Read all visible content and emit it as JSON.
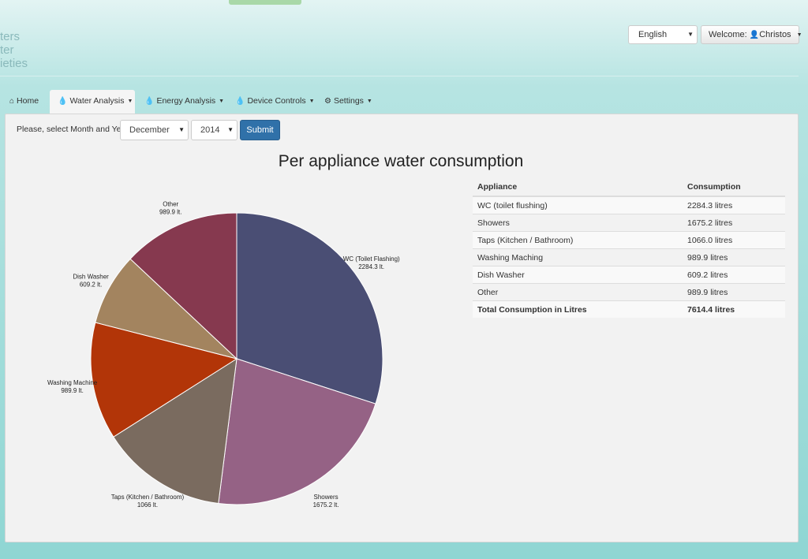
{
  "brand": {
    "lines": [
      "ters",
      "ter",
      "ieties"
    ]
  },
  "header": {
    "language": "English",
    "welcome_prefix": "Welcome:",
    "user_name": "Christos"
  },
  "nav": [
    {
      "label": "Home",
      "icon": "home-icon"
    },
    {
      "label": "Water Analysis",
      "icon": "water-drop-icon",
      "active": true
    },
    {
      "label": "Energy Analysis",
      "icon": "water-drop-icon"
    },
    {
      "label": "Device Controls",
      "icon": "water-drop-icon"
    },
    {
      "label": "Settings",
      "icon": "gear-icon"
    }
  ],
  "filter": {
    "label": "Please, select Month and Year",
    "month": "December",
    "year": "2014",
    "submit_label": "Submit"
  },
  "chart_data": {
    "type": "pie",
    "title": "Per appliance water consumption",
    "slices": [
      {
        "label": "WC (Toilet Flashing)",
        "value_label": "2284.3 lt.",
        "value": 2284.3,
        "color": "#4a4e74"
      },
      {
        "label": "Showers",
        "value_label": "1675.2 lt.",
        "value": 1675.2,
        "color": "#956285"
      },
      {
        "label": "Taps (Kitchen / Bathroom)",
        "value_label": "1066 lt.",
        "value": 1066.0,
        "color": "#7a6b5f"
      },
      {
        "label": "Washing Machine",
        "value_label": "989.9 lt.",
        "value": 989.9,
        "color": "#b23508"
      },
      {
        "label": "Dish Washer",
        "value_label": "609.2 lt.",
        "value": 609.2,
        "color": "#a3845f"
      },
      {
        "label": "Other",
        "value_label": "989.9 lt.",
        "value": 989.9,
        "color": "#86394f"
      }
    ]
  },
  "table": {
    "headers": [
      "Appliance",
      "Consumption"
    ],
    "rows": [
      [
        "WC (toilet flushing)",
        "2284.3 litres"
      ],
      [
        "Showers",
        "1675.2 litres"
      ],
      [
        "Taps (Kitchen / Bathroom)",
        "1066.0 litres"
      ],
      [
        "Washing Maching",
        "989.9 litres"
      ],
      [
        "Dish Washer",
        "609.2 litres"
      ],
      [
        "Other",
        "989.9 litres"
      ]
    ],
    "total": [
      "Total Consumption in Litres",
      "7614.4 litres"
    ]
  }
}
